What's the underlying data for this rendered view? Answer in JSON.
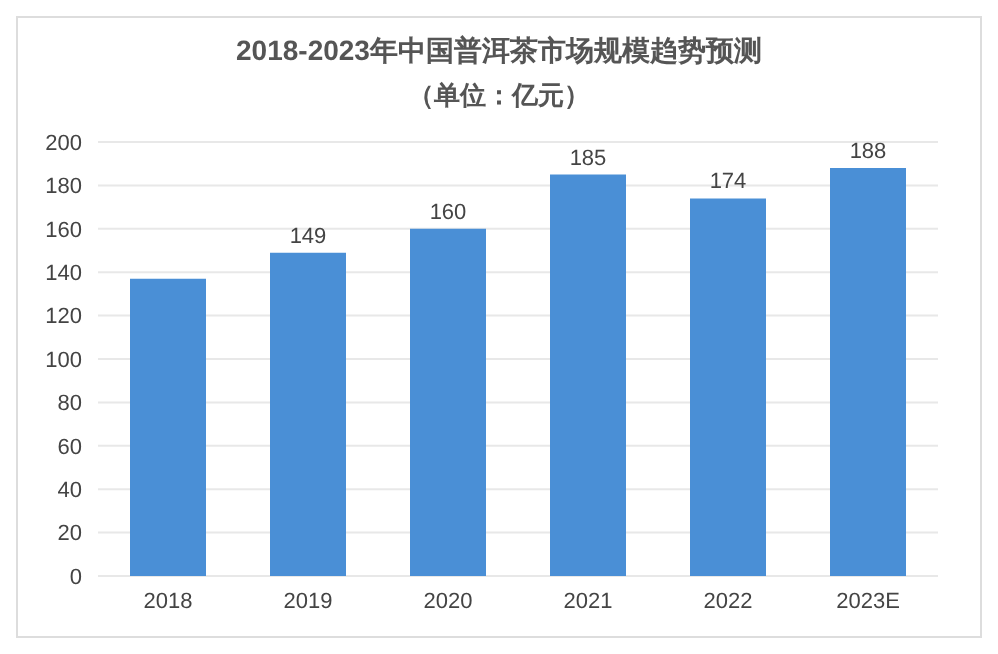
{
  "chart_data": {
    "type": "bar",
    "title": "2018-2023年中国普洱茶市场规模趋势预测",
    "subtitle": "（单位：亿元）",
    "categories": [
      "2018",
      "2019",
      "2020",
      "2021",
      "2022",
      "2023E"
    ],
    "values": [
      137,
      149,
      160,
      185,
      174,
      188
    ],
    "value_labels": [
      null,
      "149",
      "160",
      "185",
      "174",
      "188"
    ],
    "color": "#4a8fd6",
    "ylim": [
      0,
      200
    ],
    "yticks": [
      0,
      20,
      40,
      60,
      80,
      100,
      120,
      140,
      160,
      180,
      200
    ],
    "grid": "y",
    "legend": false
  }
}
